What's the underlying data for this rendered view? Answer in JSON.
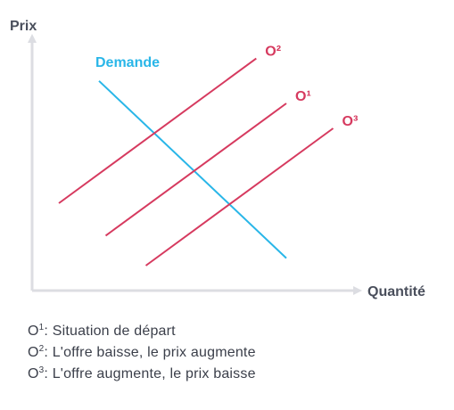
{
  "chart_data": {
    "type": "line",
    "xlabel": "Quantité",
    "ylabel": "Prix",
    "xlim": [
      0,
      10
    ],
    "ylim": [
      0,
      10
    ],
    "grid": false,
    "series": [
      {
        "name": "Demande",
        "color": "#29b6e8",
        "x": [
          2.0,
          7.6
        ],
        "y": [
          8.4,
          1.3
        ]
      },
      {
        "name": "O²",
        "color": "#d63a5f",
        "x": [
          0.8,
          6.7
        ],
        "y": [
          3.5,
          9.3
        ]
      },
      {
        "name": "O¹",
        "color": "#d63a5f",
        "x": [
          2.2,
          7.6
        ],
        "y": [
          2.2,
          7.5
        ]
      },
      {
        "name": "O³",
        "color": "#d63a5f",
        "x": [
          3.4,
          9.0
        ],
        "y": [
          1.0,
          6.5
        ]
      }
    ]
  },
  "legend": [
    {
      "tag": "O",
      "sup": "1",
      "text": ": Situation de départ"
    },
    {
      "tag": "O",
      "sup": "2",
      "text": ": L'offre baisse, le prix augmente"
    },
    {
      "tag": "O",
      "sup": "3",
      "text": ": L'offre augmente, le prix baisse"
    }
  ]
}
